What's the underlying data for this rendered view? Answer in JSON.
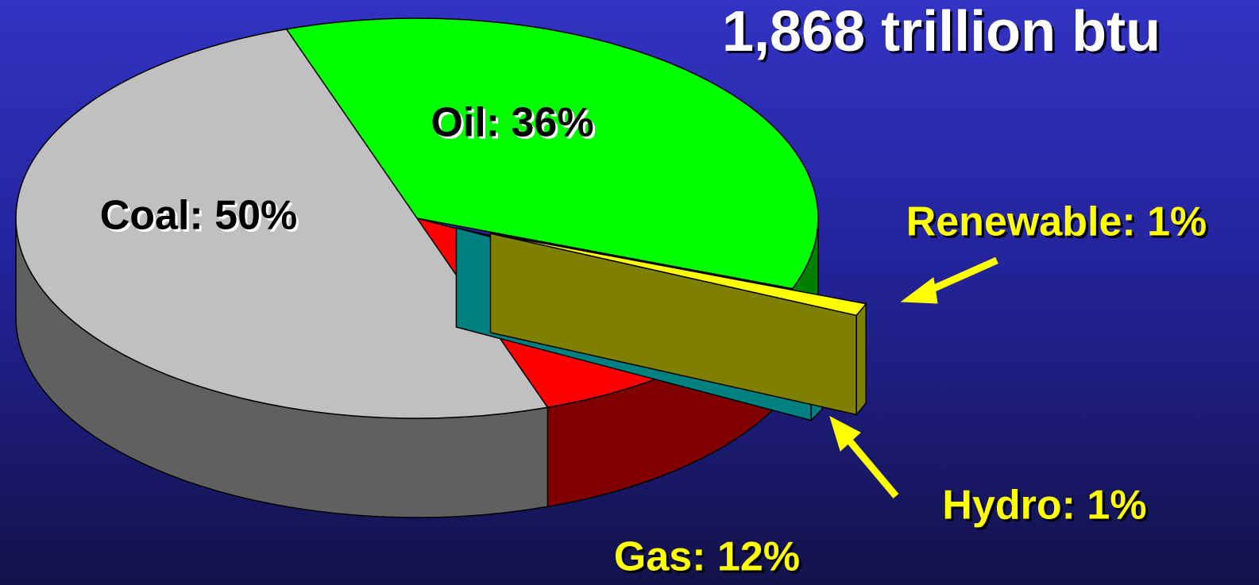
{
  "chart_data": {
    "type": "pie",
    "title": "1,868 trillion btu",
    "values": [
      36,
      1,
      1,
      12,
      50
    ],
    "value_labels": [
      "Oil: 36%",
      "Renewable: 1%",
      "Hydro: 1%",
      "Gas: 12%",
      "Coal: 50%"
    ],
    "colors": [
      "#00ff00",
      "#ffff00",
      "#00ffff",
      "#ff0000",
      "#c0c0c0"
    ],
    "side_colors": [
      "#008000",
      "#808000",
      "#008080",
      "#800000",
      "#606060"
    ]
  }
}
